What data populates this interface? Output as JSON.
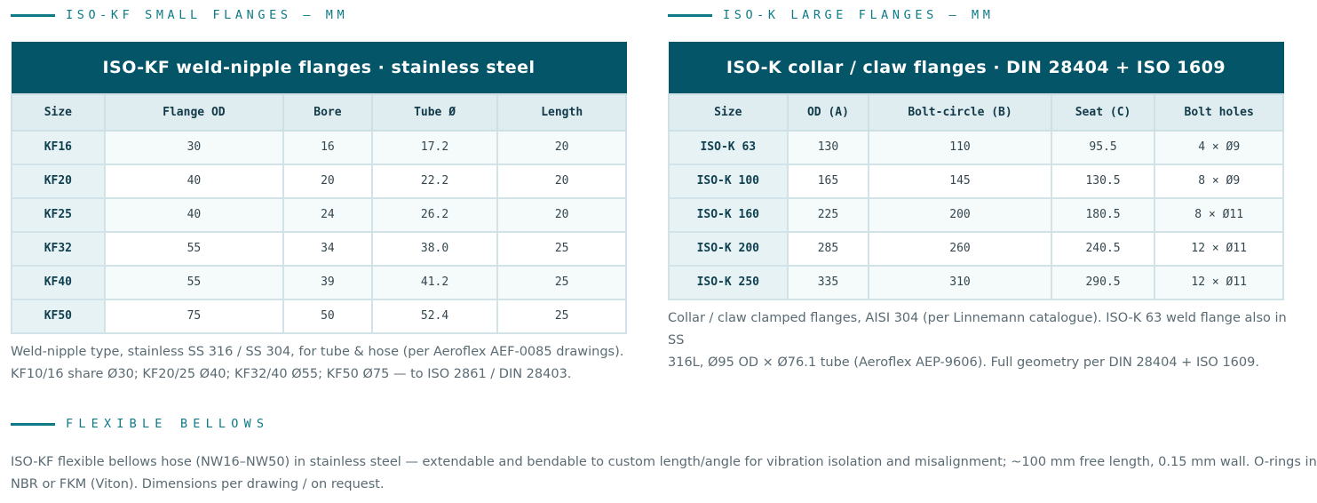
{
  "kf": {
    "heading": "ISO-KF SMALL FLANGES — MM",
    "title": "ISO-KF weld-nipple flanges · stainless steel",
    "columns": [
      "Size",
      "Flange OD",
      "Bore",
      "Tube Ø",
      "Length"
    ],
    "rows": [
      [
        "KF16",
        "30",
        "16",
        "17.2",
        "20"
      ],
      [
        "KF20",
        "40",
        "20",
        "22.2",
        "20"
      ],
      [
        "KF25",
        "40",
        "24",
        "26.2",
        "20"
      ],
      [
        "KF32",
        "55",
        "34",
        "38.0",
        "25"
      ],
      [
        "KF40",
        "55",
        "39",
        "41.2",
        "25"
      ],
      [
        "KF50",
        "75",
        "50",
        "52.4",
        "25"
      ]
    ],
    "note_line1": "Weld-nipple type, stainless SS 316 / SS 304, for tube & hose (per Aeroflex AEF-0085 drawings).",
    "note_line2": "KF10/16 share Ø30; KF20/25 Ø40; KF32/40 Ø55; KF50 Ø75 — to ISO 2861 / DIN 28403."
  },
  "isok": {
    "heading": "ISO-K LARGE FLANGES — MM",
    "title": "ISO-K collar / claw flanges · DIN 28404 + ISO 1609",
    "columns": [
      "Size",
      "OD (A)",
      "Bolt-circle (B)",
      "Seat (C)",
      "Bolt holes"
    ],
    "rows": [
      [
        "ISO-K 63",
        "130",
        "110",
        "95.5",
        "4 × Ø9"
      ],
      [
        "ISO-K 100",
        "165",
        "145",
        "130.5",
        "8 × Ø9"
      ],
      [
        "ISO-K 160",
        "225",
        "200",
        "180.5",
        "8 × Ø11"
      ],
      [
        "ISO-K 200",
        "285",
        "260",
        "240.5",
        "12 × Ø11"
      ],
      [
        "ISO-K 250",
        "335",
        "310",
        "290.5",
        "12 × Ø11"
      ]
    ],
    "note_line1": "Collar / claw clamped flanges, AISI 304 (per Linnemann catalogue). ISO-K 63 weld flange also in SS",
    "note_line2": "316L, Ø95 OD × Ø76.1 tube (Aeroflex AEP-9606). Full geometry per DIN 28404 + ISO 1609."
  },
  "bellows": {
    "heading": "FLEXIBLE BELLOWS",
    "line1": "ISO-KF flexible bellows hose (NW16–NW50) in stainless steel — extendable and bendable to custom length/angle for vibration isolation and misalignment; ~100 mm free length, 0.15 mm wall. O-rings in",
    "line2": "NBR or FKM (Viton). Dimensions per drawing / on request."
  }
}
